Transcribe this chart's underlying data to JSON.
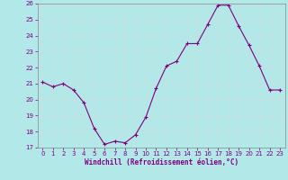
{
  "x": [
    0,
    1,
    2,
    3,
    4,
    5,
    6,
    7,
    8,
    9,
    10,
    11,
    12,
    13,
    14,
    15,
    16,
    17,
    18,
    19,
    20,
    21,
    22,
    23
  ],
  "y": [
    21.1,
    20.8,
    21.0,
    20.6,
    19.8,
    18.2,
    17.2,
    17.4,
    17.3,
    17.8,
    18.9,
    20.7,
    22.1,
    22.4,
    23.5,
    23.5,
    24.7,
    25.9,
    25.9,
    24.6,
    23.4,
    22.1,
    20.6,
    20.6
  ],
  "ylim": [
    17,
    26
  ],
  "yticks": [
    17,
    18,
    19,
    20,
    21,
    22,
    23,
    24,
    25,
    26
  ],
  "xticks": [
    0,
    1,
    2,
    3,
    4,
    5,
    6,
    7,
    8,
    9,
    10,
    11,
    12,
    13,
    14,
    15,
    16,
    17,
    18,
    19,
    20,
    21,
    22,
    23
  ],
  "xlabel": "Windchill (Refroidissement éolien,°C)",
  "line_color": "#800080",
  "marker_color": "#800080",
  "bg_color": "#b2e8e8",
  "grid_color": "#c8dede",
  "tick_color": "#800080",
  "label_color": "#800080"
}
